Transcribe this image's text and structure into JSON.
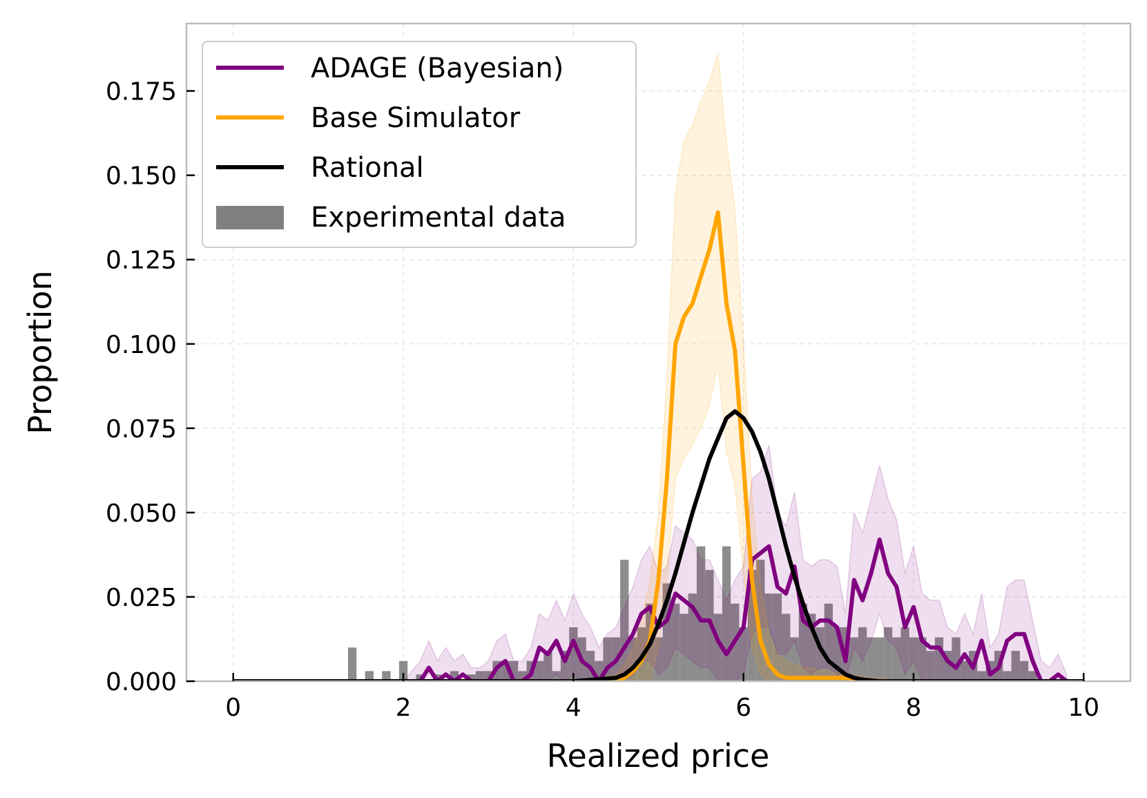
{
  "chart_data": {
    "type": "line",
    "xlabel": "Realized price",
    "ylabel": "Proportion",
    "xlim": [
      -0.55,
      10.55
    ],
    "ylim": [
      0.0,
      0.195
    ],
    "xticks": [
      0,
      2,
      4,
      6,
      8,
      10
    ],
    "yticks": [
      0.0,
      0.025,
      0.05,
      0.075,
      0.1,
      0.125,
      0.15,
      0.175
    ],
    "ytick_labels": [
      "0.000",
      "0.025",
      "0.050",
      "0.075",
      "0.100",
      "0.125",
      "0.150",
      "0.175"
    ],
    "grid": true,
    "legend_position": "top-left",
    "series": [
      {
        "name": "ADAGE (Bayesian)",
        "kind": "line",
        "color": "#800080",
        "x": [
          0,
          0.5,
          1,
          1.5,
          2,
          2.2,
          2.3,
          2.4,
          2.5,
          2.6,
          2.7,
          2.8,
          2.9,
          3.0,
          3.1,
          3.2,
          3.3,
          3.4,
          3.5,
          3.6,
          3.7,
          3.8,
          3.9,
          4.0,
          4.1,
          4.2,
          4.3,
          4.4,
          4.5,
          4.6,
          4.7,
          4.8,
          4.9,
          5.0,
          5.1,
          5.2,
          5.3,
          5.4,
          5.5,
          5.6,
          5.7,
          5.8,
          5.9,
          6.0,
          6.1,
          6.2,
          6.3,
          6.4,
          6.5,
          6.6,
          6.7,
          6.8,
          6.9,
          7.0,
          7.1,
          7.2,
          7.3,
          7.4,
          7.5,
          7.6,
          7.7,
          7.8,
          7.9,
          8.0,
          8.1,
          8.2,
          8.3,
          8.4,
          8.5,
          8.6,
          8.7,
          8.8,
          8.9,
          9.0,
          9.1,
          9.2,
          9.3,
          9.4,
          9.5,
          9.6,
          9.7,
          9.8
        ],
        "y": [
          0,
          0,
          0,
          0,
          0,
          0,
          0.004,
          0,
          0.002,
          0,
          0.002,
          0,
          0,
          0,
          0.004,
          0.006,
          0,
          0,
          0.002,
          0.01,
          0.008,
          0.012,
          0.006,
          0.012,
          0.006,
          0.004,
          0,
          0.004,
          0.006,
          0.01,
          0.014,
          0.02,
          0.022,
          0.016,
          0.018,
          0.026,
          0.024,
          0.022,
          0.018,
          0.018,
          0.012,
          0.008,
          0.012,
          0.016,
          0.036,
          0.038,
          0.04,
          0.028,
          0.026,
          0.034,
          0.018,
          0.016,
          0.018,
          0.018,
          0.016,
          0.006,
          0.03,
          0.024,
          0.032,
          0.042,
          0.032,
          0.028,
          0.016,
          0.022,
          0.012,
          0.01,
          0.01,
          0.006,
          0.004,
          0.008,
          0.004,
          0.012,
          0.002,
          0.004,
          0.012,
          0.014,
          0.014,
          0.006,
          0,
          0,
          0.002,
          0
        ],
        "band_upper": [
          0,
          0,
          0,
          0,
          0,
          0.006,
          0.012,
          0.006,
          0.01,
          0.006,
          0.008,
          0.004,
          0.004,
          0.006,
          0.012,
          0.014,
          0.006,
          0.006,
          0.01,
          0.02,
          0.018,
          0.024,
          0.018,
          0.026,
          0.02,
          0.016,
          0.01,
          0.014,
          0.016,
          0.022,
          0.028,
          0.036,
          0.04,
          0.032,
          0.034,
          0.046,
          0.044,
          0.042,
          0.036,
          0.036,
          0.03,
          0.024,
          0.03,
          0.034,
          0.06,
          0.062,
          0.07,
          0.05,
          0.046,
          0.056,
          0.036,
          0.034,
          0.036,
          0.036,
          0.034,
          0.02,
          0.05,
          0.044,
          0.054,
          0.064,
          0.054,
          0.048,
          0.032,
          0.04,
          0.026,
          0.024,
          0.024,
          0.016,
          0.014,
          0.02,
          0.014,
          0.026,
          0.01,
          0.014,
          0.028,
          0.03,
          0.03,
          0.018,
          0.006,
          0.004,
          0.008,
          0.002
        ],
        "band_lower": [
          0,
          0,
          0,
          0,
          0,
          0,
          0,
          0,
          0,
          0,
          0,
          0,
          0,
          0,
          0,
          0,
          0,
          0,
          0,
          0,
          0,
          0.002,
          0,
          0.002,
          0,
          0,
          0,
          0,
          0,
          0,
          0.002,
          0.006,
          0.006,
          0.002,
          0.004,
          0.01,
          0.008,
          0.006,
          0.004,
          0.004,
          0,
          0,
          0,
          0.002,
          0.014,
          0.016,
          0.016,
          0.008,
          0.008,
          0.012,
          0.004,
          0.002,
          0.004,
          0.004,
          0.002,
          0,
          0.01,
          0.006,
          0.012,
          0.02,
          0.012,
          0.01,
          0.002,
          0.006,
          0,
          0,
          0,
          0,
          0,
          0,
          0,
          0,
          0,
          0,
          0,
          0,
          0,
          0,
          0,
          0,
          0,
          0
        ]
      },
      {
        "name": "Base Simulator",
        "kind": "line",
        "color": "#FFA500",
        "x": [
          0,
          4.0,
          4.5,
          4.6,
          4.7,
          4.8,
          4.9,
          5.0,
          5.1,
          5.2,
          5.3,
          5.4,
          5.5,
          5.6,
          5.7,
          5.8,
          5.9,
          6.0,
          6.1,
          6.2,
          6.3,
          6.4,
          6.5,
          6.6,
          6.7,
          6.8,
          6.9,
          7.0,
          7.2,
          7.5,
          8.0,
          8.5,
          9.0,
          10.0
        ],
        "y": [
          0,
          0,
          0,
          0.001,
          0.003,
          0.006,
          0.012,
          0.03,
          0.06,
          0.1,
          0.108,
          0.112,
          0.12,
          0.128,
          0.139,
          0.112,
          0.098,
          0.064,
          0.03,
          0.012,
          0.005,
          0.002,
          0.001,
          0.001,
          0.001,
          0.001,
          0.001,
          0.001,
          0.001,
          0,
          0,
          0,
          0,
          0
        ],
        "band_upper": [
          0,
          0,
          0.002,
          0.005,
          0.01,
          0.018,
          0.03,
          0.05,
          0.09,
          0.145,
          0.16,
          0.165,
          0.172,
          0.178,
          0.186,
          0.16,
          0.14,
          0.1,
          0.055,
          0.028,
          0.014,
          0.008,
          0.006,
          0.005,
          0.004,
          0.004,
          0.003,
          0.003,
          0.002,
          0.001,
          0,
          0,
          0,
          0
        ],
        "band_lower": [
          0,
          0,
          0,
          0,
          0,
          0,
          0,
          0.01,
          0.03,
          0.06,
          0.066,
          0.07,
          0.075,
          0.082,
          0.094,
          0.068,
          0.058,
          0.032,
          0.01,
          0.002,
          0,
          0,
          0,
          0,
          0,
          0,
          0,
          0,
          0,
          0,
          0,
          0,
          0,
          0
        ]
      },
      {
        "name": "Rational",
        "kind": "line",
        "color": "#000000",
        "x": [
          0,
          4.0,
          4.5,
          4.6,
          4.7,
          4.8,
          4.9,
          5.0,
          5.1,
          5.2,
          5.3,
          5.4,
          5.5,
          5.6,
          5.7,
          5.8,
          5.9,
          6.0,
          6.1,
          6.2,
          6.3,
          6.4,
          6.5,
          6.6,
          6.7,
          6.8,
          6.9,
          7.0,
          7.1,
          7.2,
          7.3,
          7.4,
          7.6,
          8.0,
          10.0
        ],
        "y": [
          0,
          0,
          0.001,
          0.002,
          0.004,
          0.007,
          0.011,
          0.017,
          0.024,
          0.032,
          0.041,
          0.05,
          0.058,
          0.066,
          0.072,
          0.078,
          0.08,
          0.078,
          0.074,
          0.068,
          0.06,
          0.05,
          0.04,
          0.031,
          0.023,
          0.016,
          0.01,
          0.006,
          0.004,
          0.002,
          0.001,
          0.0005,
          0,
          0,
          0
        ]
      },
      {
        "name": "Experimental data",
        "kind": "bar",
        "color": "#808080",
        "bin_width": 0.1,
        "x": [
          1.4,
          1.6,
          1.8,
          2.0,
          2.2,
          2.4,
          2.6,
          2.8,
          2.9,
          3.0,
          3.1,
          3.2,
          3.3,
          3.4,
          3.5,
          3.6,
          3.7,
          3.8,
          3.9,
          4.0,
          4.1,
          4.2,
          4.3,
          4.4,
          4.5,
          4.6,
          4.7,
          4.8,
          4.9,
          5.0,
          5.1,
          5.2,
          5.3,
          5.4,
          5.5,
          5.6,
          5.7,
          5.8,
          5.9,
          6.0,
          6.1,
          6.2,
          6.3,
          6.4,
          6.5,
          6.6,
          6.7,
          6.8,
          6.9,
          7.0,
          7.1,
          7.2,
          7.3,
          7.4,
          7.5,
          7.6,
          7.7,
          7.8,
          7.9,
          8.0,
          8.1,
          8.2,
          8.3,
          8.4,
          8.5,
          8.6,
          8.7,
          8.8,
          8.9,
          9.0,
          9.1,
          9.2,
          9.3,
          9.4
        ],
        "values": [
          0.01,
          0.003,
          0.003,
          0.006,
          0.002,
          0.002,
          0.003,
          0.002,
          0.003,
          0.003,
          0.006,
          0.006,
          0.006,
          0.003,
          0.006,
          0.006,
          0.009,
          0.003,
          0.009,
          0.016,
          0.013,
          0.009,
          0.006,
          0.013,
          0.013,
          0.036,
          0.013,
          0.016,
          0.023,
          0.013,
          0.029,
          0.023,
          0.02,
          0.026,
          0.04,
          0.033,
          0.02,
          0.04,
          0.023,
          0.016,
          0.033,
          0.036,
          0.026,
          0.026,
          0.02,
          0.013,
          0.023,
          0.02,
          0.016,
          0.023,
          0.016,
          0.016,
          0.013,
          0.016,
          0.013,
          0.013,
          0.016,
          0.013,
          0.016,
          0.013,
          0.013,
          0.009,
          0.013,
          0.009,
          0.013,
          0.006,
          0.009,
          0.003,
          0.006,
          0.009,
          0.003,
          0.009,
          0.006,
          0.003
        ]
      }
    ]
  }
}
